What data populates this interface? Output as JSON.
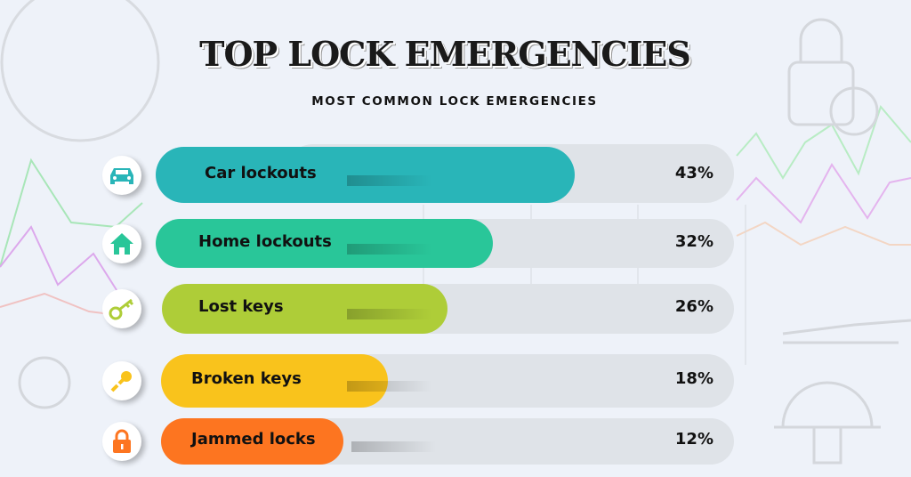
{
  "chart_data": {
    "type": "bar",
    "orientation": "horizontal",
    "title": "TOP LOCK EMERGENCIES",
    "subtitle": "MOST COMMON LOCK EMERGENCIES",
    "categories": [
      "Car lockouts",
      "Home lockouts",
      "Lost keys",
      "Broken keys",
      "Jammed locks"
    ],
    "values": [
      43,
      32,
      26,
      18,
      12
    ],
    "value_labels": [
      "43%",
      "32%",
      "26%",
      "18%",
      "12%"
    ],
    "icons": [
      "car-icon",
      "house-icon",
      "key-icon",
      "broken-key-icon",
      "padlock-icon"
    ],
    "colors": [
      "#29b5b8",
      "#29c699",
      "#aecd38",
      "#f9c31c",
      "#fd7520"
    ],
    "unit": "%"
  }
}
